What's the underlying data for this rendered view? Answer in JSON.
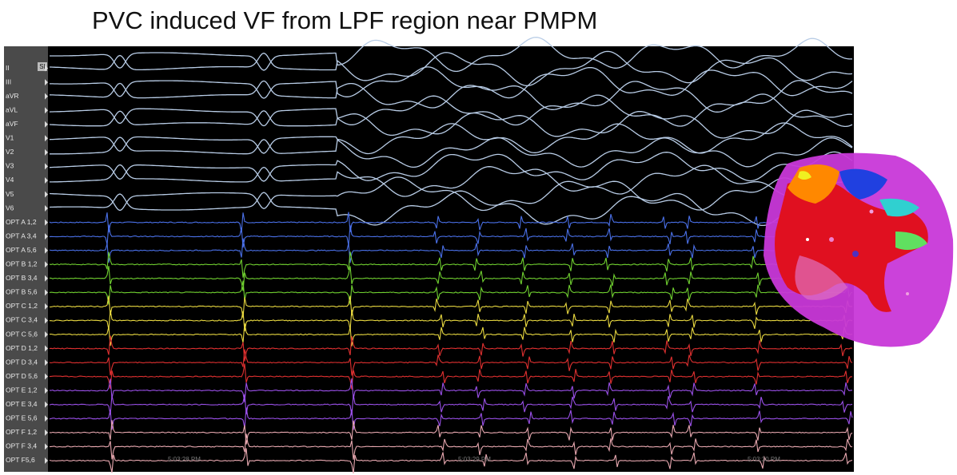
{
  "title": "PVC induced VF from LPF region near PMPM",
  "channels": [
    "II",
    "III",
    "aVR",
    "aVL",
    "aVF",
    "V1",
    "V2",
    "V3",
    "V4",
    "V5",
    "V6",
    "OPT A 1,2",
    "OPT A 3,4",
    "OPT A 5,6",
    "OPT B 1,2",
    "OPT B 3,4",
    "OPT B 5,6",
    "OPT C 1,2",
    "OPT C 3,4",
    "OPT C 5,6",
    "OPT D 1,2",
    "OPT D 3,4",
    "OPT D 5,6",
    "OPT E 1,2",
    "OPT E 3,4",
    "OPT E 5,6",
    "OPT F 1,2",
    "OPT F 3,4",
    "OPT F5,6"
  ],
  "marker": "SI",
  "time_labels": [
    "5:03:28 PM",
    "5:03:29 PM",
    "5:03:30 PM"
  ]
}
